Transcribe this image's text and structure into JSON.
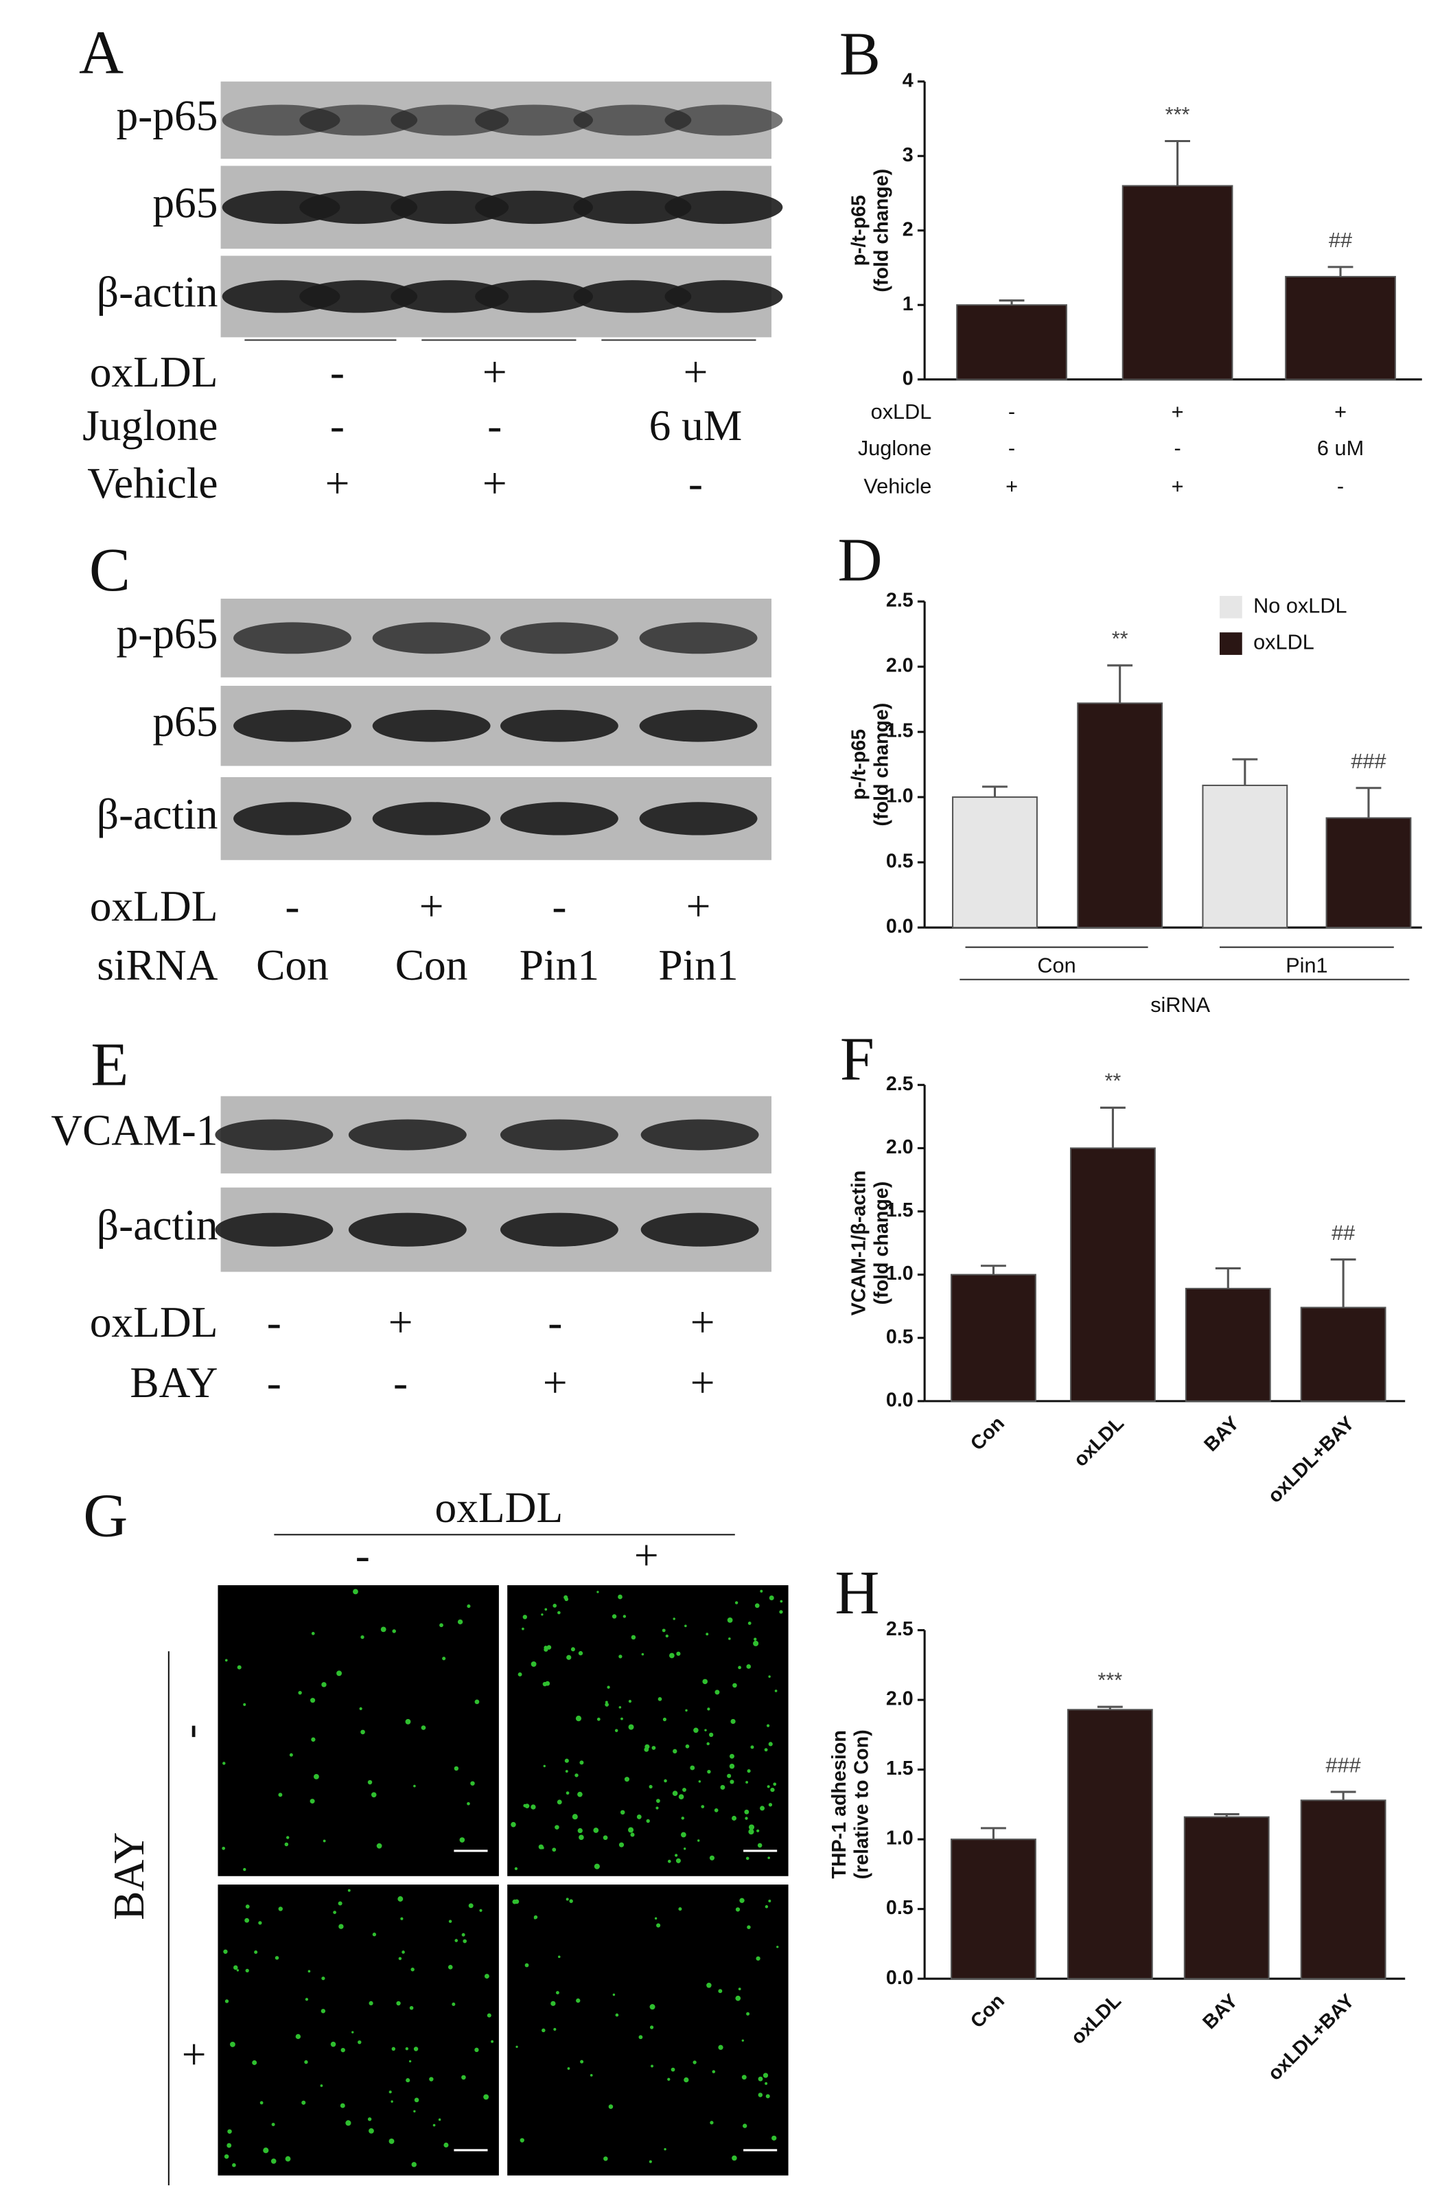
{
  "panel_A": {
    "label": "A",
    "rows": [
      "p-p65",
      "p65",
      "β-actin"
    ],
    "conditions": [
      {
        "name": "oxLDL",
        "values": [
          "-",
          "+",
          "+"
        ]
      },
      {
        "name": "Juglone",
        "values": [
          "-",
          "-",
          "6 uM"
        ]
      },
      {
        "name": "Vehicle",
        "values": [
          "+",
          "+",
          "-"
        ]
      }
    ]
  },
  "panel_C": {
    "label": "C",
    "rows": [
      "p-p65",
      "p65",
      "β-actin"
    ],
    "conditions": [
      {
        "name": "oxLDL",
        "values": [
          "-",
          "+",
          "-",
          "+"
        ]
      },
      {
        "name": "siRNA",
        "values": [
          "Con",
          "Con",
          "Pin1",
          "Pin1"
        ]
      }
    ]
  },
  "panel_E": {
    "label": "E",
    "rows": [
      "VCAM-1",
      "β-actin"
    ],
    "conditions": [
      {
        "name": "oxLDL",
        "values": [
          "-",
          "+",
          "-",
          "+"
        ]
      },
      {
        "name": "BAY",
        "values": [
          "-",
          "-",
          "+",
          "+"
        ]
      }
    ]
  },
  "panel_G": {
    "label": "G",
    "column_header": "oxLDL",
    "columns": [
      "-",
      "+"
    ],
    "row_header": "BAY",
    "rows": [
      "-",
      "+"
    ]
  },
  "chart_data": [
    {
      "type": "bar",
      "label": "B",
      "ylabel": [
        "p-/t-p65",
        "(fold change)"
      ],
      "values": [
        1.0,
        2.6,
        1.38
      ],
      "errors": [
        0.06,
        0.6,
        0.13
      ],
      "annotations": [
        null,
        "***",
        "##"
      ],
      "color": "#2a1614",
      "conditions": [
        {
          "name": "oxLDL",
          "values": [
            "-",
            "+",
            "+"
          ]
        },
        {
          "name": "Juglone",
          "values": [
            "-",
            "-",
            "6 uM"
          ]
        },
        {
          "name": "Vehicle",
          "values": [
            "+",
            "+",
            "-"
          ]
        }
      ],
      "ylim": [
        0,
        4
      ],
      "yticks": [
        0,
        1,
        2,
        3,
        4
      ]
    },
    {
      "type": "grouped_bar",
      "label": "D",
      "ylabel": [
        "p-/t-p65",
        "(fold change)"
      ],
      "categories": [
        "Con",
        "Pin1"
      ],
      "xlabel": "siRNA",
      "legend": "upper right",
      "series": [
        {
          "name": "No oxLDL",
          "color": "#e6e6e6",
          "values": [
            1.0,
            1.09
          ],
          "errors": [
            0.08,
            0.2
          ]
        },
        {
          "name": "oxLDL",
          "color": "#2a1614",
          "values": [
            1.72,
            0.84
          ],
          "errors": [
            0.29,
            0.23
          ],
          "annotations": [
            "**",
            "###"
          ]
        }
      ],
      "ylim": [
        0,
        2.5
      ],
      "yticks": [
        {
          "value": 0,
          "label": "0.0"
        },
        0.5,
        {
          "value": 1,
          "label": "1.0"
        },
        1.5,
        {
          "value": 2,
          "label": "2.0"
        },
        2.5
      ]
    },
    {
      "type": "bar",
      "label": "F",
      "ylabel": [
        "VCAM-1/β-actin",
        "(fold change)"
      ],
      "categories": [
        "Con",
        "oxLDL",
        "BAY",
        "oxLDL+BAY"
      ],
      "values": [
        1.0,
        2.0,
        0.89,
        0.74
      ],
      "errors": [
        0.07,
        0.32,
        0.16,
        0.38
      ],
      "annotations": [
        null,
        "**",
        null,
        "##"
      ],
      "color": "#2a1614",
      "ylim": [
        0,
        2.5
      ],
      "yticks": [
        {
          "value": 0,
          "label": "0.0"
        },
        0.5,
        {
          "value": 1,
          "label": "1.0"
        },
        1.5,
        {
          "value": 2,
          "label": "2.0"
        },
        2.5
      ]
    },
    {
      "type": "bar",
      "label": "H",
      "ylabel": [
        "THP-1 adhesion",
        "(relative to Con)"
      ],
      "categories": [
        "Con",
        "oxLDL",
        "BAY",
        "oxLDL+BAY"
      ],
      "values": [
        1.0,
        1.93,
        1.16,
        1.28
      ],
      "errors": [
        0.08,
        0.02,
        0.02,
        0.06
      ],
      "annotations": [
        null,
        "***",
        null,
        "###"
      ],
      "color": "#2a1614",
      "ylim": [
        0,
        2.5
      ],
      "yticks": [
        {
          "value": 0,
          "label": "0.0"
        },
        0.5,
        {
          "value": 1,
          "label": "1.0"
        },
        1.5,
        {
          "value": 2,
          "label": "2.0"
        },
        2.5
      ]
    }
  ]
}
